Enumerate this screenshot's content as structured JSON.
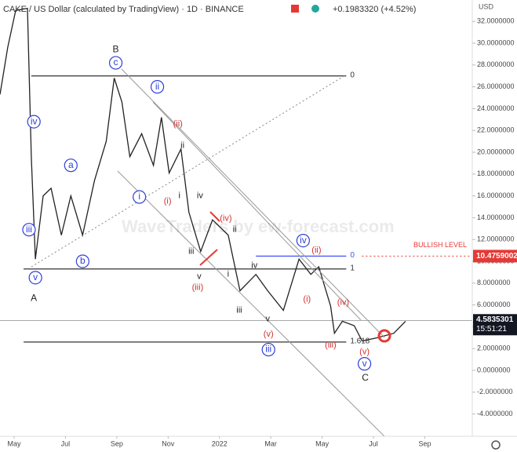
{
  "chart_data": {
    "type": "line",
    "title": "CAKE / US Dollar (calculated by TradingView) · 1D · BINANCE",
    "change": "+0.1983320 (+4.52%)",
    "y_axis_label": "USD",
    "watermark": "WaveTraders by ew-forecast.com",
    "xlim": [
      -0.55,
      17.85
    ],
    "ylim": [
      -5.47,
      33.96
    ],
    "xticks": [
      {
        "value": 0,
        "label": "May"
      },
      {
        "value": 2,
        "label": "Jul"
      },
      {
        "value": 4,
        "label": "Sep"
      },
      {
        "value": 6,
        "label": "Nov"
      },
      {
        "value": 8,
        "label": "2022"
      },
      {
        "value": 10,
        "label": "Mar"
      },
      {
        "value": 12,
        "label": "May"
      },
      {
        "value": 14,
        "label": "Jul"
      },
      {
        "value": 16,
        "label": "Sep"
      }
    ],
    "yticks": [
      {
        "value": 32,
        "label": "32.0000000"
      },
      {
        "value": 30,
        "label": "30.0000000"
      },
      {
        "value": 28,
        "label": "28.0000000"
      },
      {
        "value": 26,
        "label": "26.0000000"
      },
      {
        "value": 24,
        "label": "24.0000000"
      },
      {
        "value": 22,
        "label": "22.0000000"
      },
      {
        "value": 20,
        "label": "20.0000000"
      },
      {
        "value": 18,
        "label": "18.0000000"
      },
      {
        "value": 16,
        "label": "16.0000000"
      },
      {
        "value": 14,
        "label": "14.0000000"
      },
      {
        "value": 12,
        "label": "12.0000000"
      },
      {
        "value": 10,
        "label": "10.0000000"
      },
      {
        "value": 8,
        "label": "8.0000000"
      },
      {
        "value": 6,
        "label": "6.0000000"
      },
      {
        "value": 4,
        "label": "4.0000000"
      },
      {
        "value": 2,
        "label": "2.0000000"
      },
      {
        "value": 0,
        "label": "0.0000000"
      },
      {
        "value": -2,
        "label": "-2.0000000"
      },
      {
        "value": -4,
        "label": "-4.0000000"
      }
    ],
    "series": [
      {
        "name": "CAKE",
        "color": "#222222",
        "x": [
          -0.55,
          -0.25,
          0.06,
          0.52,
          0.67,
          0.83,
          1.13,
          1.44,
          1.84,
          2.21,
          2.67,
          3.13,
          3.59,
          3.9,
          4.2,
          4.51,
          4.97,
          5.43,
          5.74,
          6.04,
          6.5,
          6.81,
          7.27,
          7.73,
          8.34,
          8.8,
          9.42,
          9.88,
          10.49,
          11.1,
          11.56,
          11.87,
          12.33,
          12.48,
          12.79,
          13.25,
          13.56,
          14.17,
          14.79,
          15.25
        ],
        "values": [
          25.3,
          29.6,
          33.0,
          33.2,
          19.6,
          10.2,
          16,
          16.7,
          12.4,
          16,
          12.4,
          17.4,
          21,
          26.8,
          24.6,
          19.6,
          21.7,
          18.8,
          23.2,
          18.1,
          20.3,
          14.5,
          10.9,
          13.8,
          12.4,
          7.3,
          8.8,
          7.3,
          5.5,
          10.2,
          8.8,
          9.5,
          5.9,
          3.4,
          4.5,
          4.1,
          2.7,
          3.0,
          3.4,
          4.5
        ]
      }
    ],
    "levels": [
      {
        "value": 27,
        "label": "0",
        "color": "#333333",
        "x": [
          0.67,
          12.94
        ]
      },
      {
        "value": 9.3,
        "label": "1",
        "color": "#333333",
        "x": [
          0.37,
          12.94
        ]
      },
      {
        "value": 10.4759002,
        "label": "0",
        "color": "#3f51ff",
        "x": [
          9.42,
          12.94
        ],
        "price_label": "10.4759002",
        "note": "BULLISH LEVEL",
        "note_color": "#e53935"
      },
      {
        "value": 2.6,
        "label": "1.618",
        "color": "#333333",
        "x": [
          0.37,
          12.94
        ]
      }
    ],
    "last_price": {
      "value": 4.5835301,
      "label": "4.5835301",
      "time": "15:51:21"
    },
    "annotations": [
      {
        "text": "iv",
        "x": 0.77,
        "y": 22.8,
        "color": "#2f3fd8",
        "circled": true
      },
      {
        "text": "iii",
        "x": 0.58,
        "y": 12.9,
        "color": "#2f3fd8",
        "circled": true
      },
      {
        "text": "v",
        "x": 0.83,
        "y": 8.5,
        "color": "#2f3fd8",
        "circled": true
      },
      {
        "text": "a",
        "x": 2.21,
        "y": 18.8,
        "color": "#2f3fd8",
        "circled": true
      },
      {
        "text": "b",
        "x": 2.67,
        "y": 10.0,
        "color": "#2f3fd8",
        "circled": true
      },
      {
        "text": "c",
        "x": 3.96,
        "y": 28.2,
        "color": "#2f3fd8",
        "circled": true
      },
      {
        "text": "ii",
        "x": 5.58,
        "y": 26.0,
        "color": "#2f3fd8",
        "circled": true
      },
      {
        "text": "i",
        "x": 4.88,
        "y": 15.9,
        "color": "#2f3fd8",
        "circled": true
      },
      {
        "text": "iv",
        "x": 11.26,
        "y": 11.9,
        "color": "#2f3fd8",
        "circled": true
      },
      {
        "text": "iii",
        "x": 9.91,
        "y": 1.9,
        "color": "#2f3fd8",
        "circled": true
      },
      {
        "text": "v",
        "x": 13.65,
        "y": 0.6,
        "color": "#2f3fd8",
        "circled": true
      },
      {
        "text": "A",
        "x": 0.77,
        "y": 6.6,
        "color": "#222222",
        "circled": false
      },
      {
        "text": "B",
        "x": 3.96,
        "y": 29.4,
        "color": "#222222",
        "circled": false
      },
      {
        "text": "C",
        "x": 13.68,
        "y": -0.7,
        "color": "#222222",
        "circled": false
      },
      {
        "text": "ii",
        "x": 6.56,
        "y": 20.6,
        "color": "#222222",
        "circled": false
      },
      {
        "text": "i",
        "x": 6.44,
        "y": 16.0,
        "color": "#222222",
        "circled": false
      },
      {
        "text": "iv",
        "x": 7.24,
        "y": 16.0,
        "color": "#222222",
        "circled": false
      },
      {
        "text": "iii",
        "x": 6.9,
        "y": 10.9,
        "color": "#222222",
        "circled": false
      },
      {
        "text": "v",
        "x": 7.21,
        "y": 8.6,
        "color": "#222222",
        "circled": false
      },
      {
        "text": "ii",
        "x": 8.59,
        "y": 12.9,
        "color": "#222222",
        "circled": false
      },
      {
        "text": "i",
        "x": 8.34,
        "y": 8.8,
        "color": "#222222",
        "circled": false
      },
      {
        "text": "iv",
        "x": 9.36,
        "y": 9.6,
        "color": "#222222",
        "circled": false
      },
      {
        "text": "iii",
        "x": 8.77,
        "y": 5.5,
        "color": "#222222",
        "circled": false
      },
      {
        "text": "v",
        "x": 9.88,
        "y": 4.7,
        "color": "#222222",
        "circled": false
      },
      {
        "text": "(ii)",
        "x": 6.38,
        "y": 22.6,
        "color": "#d32f2f",
        "circled": false
      },
      {
        "text": "(i)",
        "x": 5.98,
        "y": 15.5,
        "color": "#d32f2f",
        "circled": false
      },
      {
        "text": "(iv)",
        "x": 8.25,
        "y": 13.9,
        "color": "#d32f2f",
        "circled": false
      },
      {
        "text": "(iii)",
        "x": 7.15,
        "y": 7.6,
        "color": "#d32f2f",
        "circled": false
      },
      {
        "text": "(ii)",
        "x": 11.78,
        "y": 11.0,
        "color": "#d32f2f",
        "circled": false
      },
      {
        "text": "(i)",
        "x": 11.41,
        "y": 6.5,
        "color": "#d32f2f",
        "circled": false
      },
      {
        "text": "(iv)",
        "x": 12.82,
        "y": 6.2,
        "color": "#d32f2f",
        "circled": false
      },
      {
        "text": "(v)",
        "x": 9.91,
        "y": 3.3,
        "color": "#d32f2f",
        "circled": false
      },
      {
        "text": "(iii)",
        "x": 12.33,
        "y": 2.3,
        "color": "#d32f2f",
        "circled": false
      },
      {
        "text": "(v)",
        "x": 13.65,
        "y": 1.7,
        "color": "#d32f2f",
        "circled": false
      }
    ]
  }
}
